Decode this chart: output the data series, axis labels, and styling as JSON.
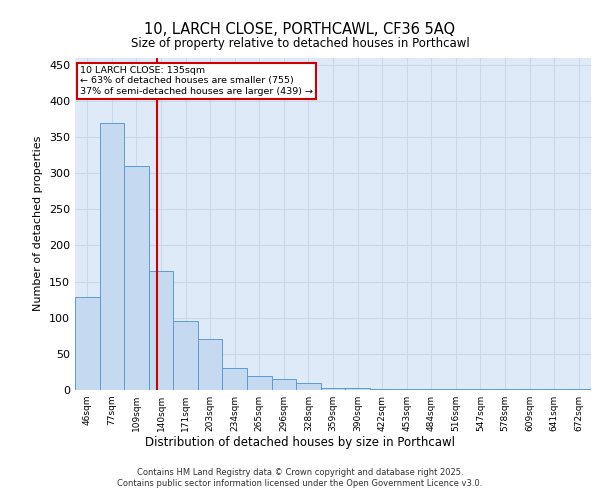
{
  "title_line1": "10, LARCH CLOSE, PORTHCAWL, CF36 5AQ",
  "title_line2": "Size of property relative to detached houses in Porthcawl",
  "xlabel": "Distribution of detached houses by size in Porthcawl",
  "ylabel": "Number of detached properties",
  "bin_labels": [
    "46sqm",
    "77sqm",
    "109sqm",
    "140sqm",
    "171sqm",
    "203sqm",
    "234sqm",
    "265sqm",
    "296sqm",
    "328sqm",
    "359sqm",
    "390sqm",
    "422sqm",
    "453sqm",
    "484sqm",
    "516sqm",
    "547sqm",
    "578sqm",
    "609sqm",
    "641sqm",
    "672sqm"
  ],
  "bar_heights": [
    128,
    370,
    310,
    165,
    95,
    70,
    30,
    20,
    15,
    10,
    3,
    3,
    2,
    2,
    2,
    2,
    1,
    1,
    1,
    1,
    2
  ],
  "bar_color": "#c5d9f0",
  "bar_edge_color": "#5b9bd5",
  "grid_color": "#c8d8ea",
  "annotation_text": "10 LARCH CLOSE: 135sqm\n← 63% of detached houses are smaller (755)\n37% of semi-detached houses are larger (439) →",
  "annotation_box_color": "#ffffff",
  "annotation_box_edge": "#cc0000",
  "red_line_color": "#cc0000",
  "ylim": [
    0,
    460
  ],
  "yticks": [
    0,
    50,
    100,
    150,
    200,
    250,
    300,
    350,
    400,
    450
  ],
  "footer_line1": "Contains HM Land Registry data © Crown copyright and database right 2025.",
  "footer_line2": "Contains public sector information licensed under the Open Government Licence v3.0.",
  "plot_bg": "#deeaf7",
  "fig_bg": "#ffffff"
}
